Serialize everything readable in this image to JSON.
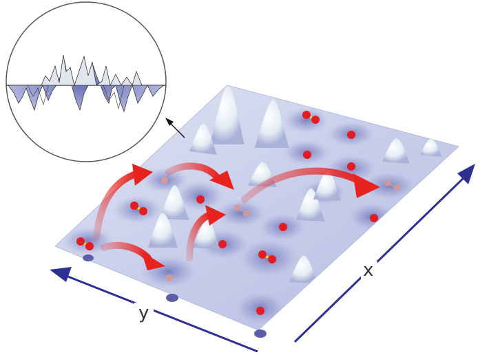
{
  "axes": {
    "x_label": "x",
    "y_label": "y"
  },
  "colors": {
    "surface_light": "#e9edf7",
    "surface_dark": "#7f86c2",
    "axis": "#2e3192",
    "arrow_red": "#e8221f",
    "atom_red": "#e31b23",
    "bond_yellow": "#ffe600",
    "adatom_faded": "#d49a9a",
    "inset_border": "#555555"
  },
  "inset": {
    "description_icon": "magnified-surface-profile",
    "pointer": "arrow-to-surface"
  }
}
